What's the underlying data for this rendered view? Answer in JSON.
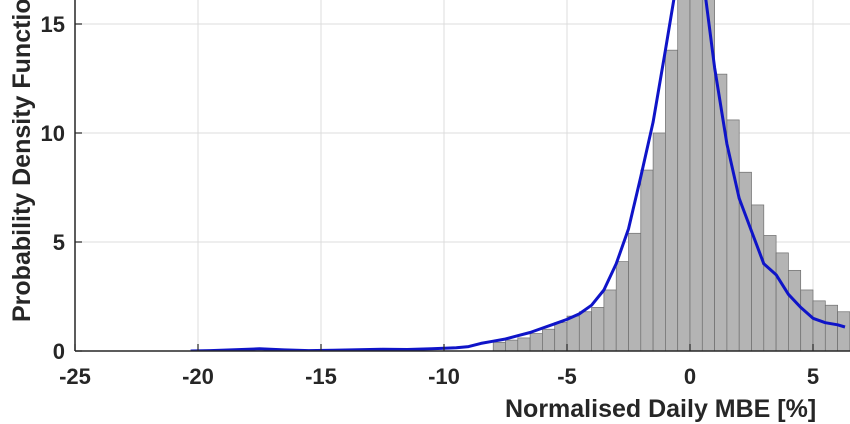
{
  "chart_data": {
    "type": "bar",
    "xlabel": "Normalised Daily MBE [%]",
    "ylabel": "Probability Density Function",
    "xlim": [
      -25,
      6.3
    ],
    "ylim": [
      0,
      16
    ],
    "grid": true,
    "x_ticks": [
      "-25",
      "-20",
      "-15",
      "-10",
      "-5",
      "0",
      "5"
    ],
    "y_ticks": [
      "0",
      "5",
      "10",
      "15"
    ],
    "x_tick_values": [
      -25,
      -20,
      -15,
      -10,
      -5,
      0,
      5
    ],
    "y_tick_values": [
      0,
      5,
      10,
      15
    ],
    "colors": {
      "bar_fill": "#b4b4b4",
      "bar_edge": "#6e6e6e",
      "curve": "#0f14c8",
      "grid": "#dcdcdc",
      "axis": "#262626"
    },
    "histogram": {
      "bin_edges": [
        -8.0,
        -7.5,
        -7.0,
        -6.5,
        -6.0,
        -5.5,
        -5.0,
        -4.5,
        -4.0,
        -3.5,
        -3.0,
        -2.5,
        -2.0,
        -1.5,
        -1.0,
        -0.5,
        0.0,
        0.5,
        1.0,
        1.5,
        2.0,
        2.5,
        3.0,
        3.5,
        4.0,
        4.5,
        5.0,
        5.5,
        6.0,
        6.5
      ],
      "values": [
        0.4,
        0.5,
        0.6,
        0.8,
        1.0,
        1.3,
        1.6,
        1.8,
        2.0,
        2.8,
        4.1,
        5.4,
        8.3,
        10.0,
        13.8,
        16.5,
        16.5,
        16.5,
        12.7,
        10.6,
        8.2,
        6.7,
        5.3,
        4.5,
        3.7,
        2.8,
        2.3,
        2.1,
        1.8
      ]
    },
    "series": [
      {
        "x": [
          -20.3,
          -19.5,
          -18.5,
          -17.5,
          -16.5,
          -15.5,
          -14.5,
          -13.5,
          -12.5,
          -11.5,
          -10.5,
          -9.5,
          -9.0,
          -8.5,
          -8.0,
          -7.5,
          -7.0,
          -6.5,
          -6.0,
          -5.5,
          -5.0,
          -4.5,
          -4.0,
          -3.5,
          -3.0,
          -2.5,
          -2.0,
          -1.5,
          -1.0,
          -0.6,
          -0.2,
          0.2,
          0.6,
          1.0,
          1.5,
          2.0,
          2.5,
          3.0,
          3.5,
          4.0,
          4.5,
          5.0,
          5.5,
          6.0,
          6.3
        ],
        "y": [
          0.0,
          0.02,
          0.06,
          0.1,
          0.05,
          0.02,
          0.03,
          0.06,
          0.08,
          0.07,
          0.1,
          0.15,
          0.2,
          0.35,
          0.45,
          0.55,
          0.7,
          0.85,
          1.05,
          1.25,
          1.45,
          1.7,
          2.1,
          2.8,
          4.0,
          5.6,
          8.0,
          10.5,
          13.8,
          16.5,
          16.5,
          16.5,
          16.5,
          13.0,
          9.5,
          7.0,
          5.5,
          4.0,
          3.5,
          2.6,
          2.0,
          1.5,
          1.3,
          1.2,
          1.1
        ]
      }
    ]
  }
}
